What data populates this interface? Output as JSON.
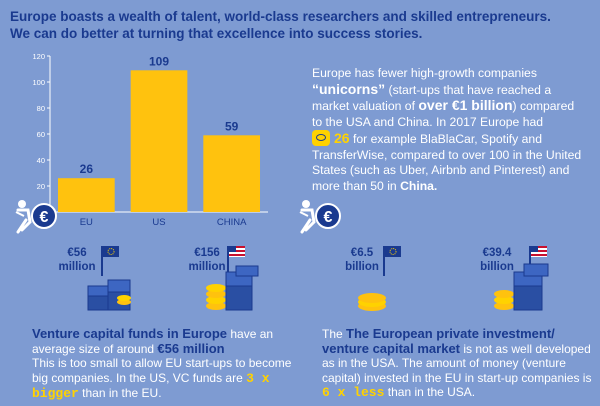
{
  "headline": {
    "line1": "Europe boasts a wealth of talent, world-class researchers and skilled entrepreneurs.",
    "line2": "We can do better at turning that excellence into success stories."
  },
  "chart_data": {
    "type": "bar",
    "categories": [
      "EU",
      "US",
      "CHINA"
    ],
    "values": [
      26,
      109,
      59
    ],
    "ylim": [
      0,
      120
    ],
    "yticks": [
      0,
      20,
      40,
      60,
      80,
      100,
      120
    ],
    "title": "",
    "xlabel": "",
    "ylabel": "",
    "bar_color": "#ffc20e",
    "label_color": "#1a3a8f",
    "grid": false
  },
  "right_text": {
    "p1": "Europe has fewer high-growth companies",
    "unicorns": "“unicorns”",
    "p2": " (start-ups that have reached a market valuation of ",
    "over": "over €1 billion",
    "p3": ") compared to the USA and China. In 2017 Europe had",
    "num26": "26",
    "p4": " for example BlaBlaCar, Spotify and TransferWise, compared to over 100 in the United States (such as Uber, Airbnb and Pinterest) and more than 50 in ",
    "china": "China."
  },
  "left_section": {
    "eu_amount": "€56",
    "eu_unit": "million",
    "us_amount": "€156",
    "us_unit": "million",
    "title": "Venture capital funds in Europe",
    "t1": " have an average size of around ",
    "avg": "€56 million",
    "t2": "This is too small to allow EU start-ups to become big companies. In the US, VC funds are ",
    "bigger": "3 x bigger",
    "t3": " than in the EU."
  },
  "right_section": {
    "eu_amount": "€6.5",
    "eu_unit": "billion",
    "us_amount": "€39.4",
    "us_unit": "billion",
    "title": "The European private investment/ venture capital market",
    "t1": " is not as well developed as in the USA. The amount of money (venture capital) invested in the EU in start-up companies is ",
    "less": "6 x less",
    "t2": " than in the USA."
  },
  "colors": {
    "background": "#7e9bd2",
    "dark_blue": "#1a3a8f",
    "yellow": "#ffd200",
    "gold": "#ffc20e"
  },
  "icons": [
    "running-figure-euro-icon",
    "eu-flag-icon",
    "us-flag-icon",
    "money-stack-icon",
    "coin-stack-icon"
  ]
}
